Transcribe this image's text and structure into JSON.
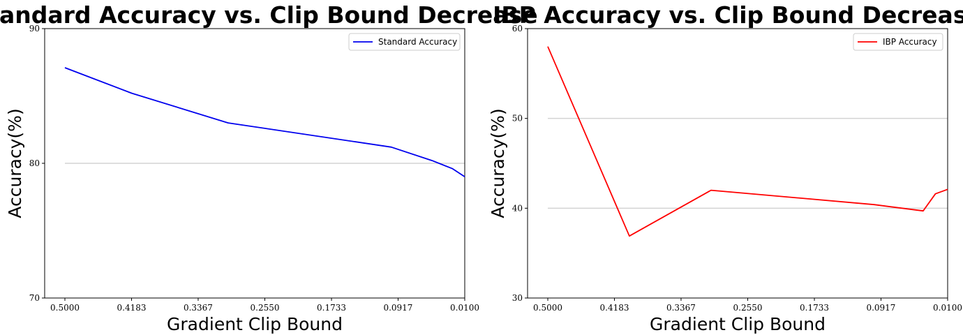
{
  "chart_data": [
    {
      "type": "line",
      "title": "Standard Accuracy vs. Clip Bound Decrease",
      "xlabel": "Gradient Clip Bound",
      "ylabel": "Accuracy(%)",
      "x_reversed": true,
      "xlim": [
        0.5,
        0.01
      ],
      "ylim": [
        70,
        90
      ],
      "xticks": [
        0.5,
        0.4183,
        0.3367,
        0.255,
        0.1733,
        0.0917,
        0.01
      ],
      "xtick_labels": [
        "0.5000",
        "0.4183",
        "0.3367",
        "0.2550",
        "0.1733",
        "0.0917",
        "0.0100"
      ],
      "yticks": [
        70,
        80,
        90
      ],
      "ytick_labels": [
        "70",
        "80",
        "90"
      ],
      "grid": "horizontal",
      "legend": "top-right",
      "series": [
        {
          "name": "Standard Accuracy",
          "color": "#0000ee",
          "x": [
            0.5,
            0.418,
            0.3,
            0.1,
            0.05,
            0.025,
            0.01
          ],
          "y": [
            87.1,
            85.2,
            83.0,
            81.2,
            80.2,
            79.6,
            79.0
          ]
        }
      ]
    },
    {
      "type": "line",
      "title": "IBP Accuracy vs. Clip Bound Decrease",
      "xlabel": "Gradient Clip Bound",
      "ylabel": "Accuracy(%)",
      "x_reversed": true,
      "xlim": [
        0.5,
        0.01
      ],
      "ylim": [
        30,
        60
      ],
      "xticks": [
        0.5,
        0.4183,
        0.3367,
        0.255,
        0.1733,
        0.0917,
        0.01
      ],
      "xtick_labels": [
        "0.5000",
        "0.4183",
        "0.3367",
        "0.2550",
        "0.1733",
        "0.0917",
        "0.0100"
      ],
      "yticks": [
        30,
        40,
        50,
        60
      ],
      "ytick_labels": [
        "30",
        "40",
        "50",
        "60"
      ],
      "grid": "horizontal",
      "legend": "top-right",
      "series": [
        {
          "name": "IBP Accuracy",
          "color": "#ff0000",
          "x": [
            0.5,
            0.4,
            0.3,
            0.1,
            0.04,
            0.025,
            0.01
          ],
          "y": [
            58.0,
            36.9,
            42.0,
            40.4,
            39.7,
            41.6,
            42.1
          ]
        }
      ]
    }
  ]
}
